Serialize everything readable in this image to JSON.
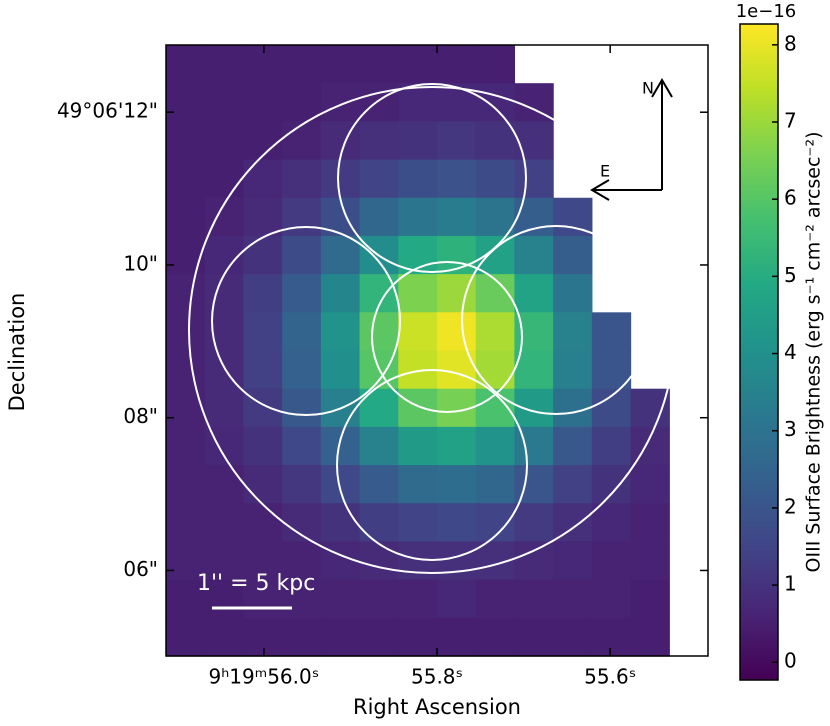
{
  "chart_data": {
    "type": "heatmap",
    "xlabel": "Right Ascension",
    "ylabel": "Declination",
    "colormap": "viridis",
    "clim": [
      -0.23,
      8.27
    ],
    "cbar_ticks": [
      0,
      1,
      2,
      3,
      4,
      5,
      6,
      7,
      8
    ],
    "cbar_offset": "1e−16",
    "cbar_label": "OIII Surface Brightness (erg s⁻¹ cm⁻² arcsec⁻²)",
    "xlim": [
      56.113,
      55.487
    ],
    "xticks": [
      {
        "value": 56.0,
        "label": "9ʰ19ᵐ56.0ˢ"
      },
      {
        "value": 55.8,
        "label": "55.8ˢ"
      },
      {
        "value": 55.6,
        "label": "55.6ˢ"
      }
    ],
    "ylim": [
      4.88,
      12.88
    ],
    "yticks": [
      {
        "value": 12,
        "label": "49°06'12\""
      },
      {
        "value": 10,
        "label": "10\""
      },
      {
        "value": 8,
        "label": "08\""
      },
      {
        "value": 6,
        "label": "06\""
      }
    ],
    "values": [
      [
        0.5,
        0.5,
        0.5,
        0.5,
        0.5,
        0.5,
        0.5,
        0.5,
        0.5,
        null,
        null,
        null,
        null,
        null
      ],
      [
        0.5,
        0.5,
        0.5,
        0.5,
        0.6,
        0.6,
        0.7,
        0.7,
        0.7,
        0.6,
        null,
        null,
        null,
        null
      ],
      [
        0.5,
        0.5,
        0.5,
        0.6,
        0.8,
        0.9,
        1.0,
        1.1,
        1.0,
        0.9,
        null,
        null,
        null,
        null
      ],
      [
        0.5,
        0.5,
        0.7,
        0.9,
        1.2,
        1.5,
        1.8,
        1.9,
        1.7,
        1.4,
        null,
        null,
        null,
        null
      ],
      [
        0.5,
        0.6,
        0.8,
        1.2,
        1.8,
        2.6,
        3.1,
        3.3,
        3.0,
        2.3,
        1.6,
        null,
        null,
        null
      ],
      [
        0.5,
        0.7,
        1.0,
        1.7,
        2.7,
        3.9,
        4.9,
        5.2,
        4.6,
        3.5,
        2.3,
        null,
        null,
        null
      ],
      [
        0.6,
        0.8,
        1.3,
        2.2,
        3.6,
        5.3,
        6.6,
        7.0,
        6.3,
        4.7,
        3.1,
        null,
        null,
        null
      ],
      [
        0.6,
        0.8,
        1.4,
        2.5,
        4.1,
        6.1,
        7.6,
        8.1,
        7.2,
        5.4,
        3.5,
        2.0,
        null,
        null
      ],
      [
        0.6,
        0.8,
        1.4,
        2.4,
        4.0,
        6.0,
        7.5,
        7.9,
        7.1,
        5.3,
        3.4,
        2.0,
        null,
        null
      ],
      [
        0.6,
        0.8,
        1.2,
        2.1,
        3.4,
        4.9,
        6.1,
        6.5,
        5.8,
        4.4,
        2.9,
        1.7,
        1.0,
        null
      ],
      [
        0.6,
        0.7,
        1.0,
        1.6,
        2.4,
        3.5,
        4.4,
        4.6,
        4.1,
        3.2,
        2.1,
        1.3,
        0.8,
        null
      ],
      [
        0.6,
        0.6,
        0.8,
        1.1,
        1.6,
        2.2,
        2.7,
        2.8,
        2.6,
        2.0,
        1.4,
        1.0,
        0.7,
        null
      ],
      [
        0.6,
        0.6,
        0.6,
        0.8,
        1.0,
        1.3,
        1.5,
        1.6,
        1.5,
        1.2,
        0.9,
        0.7,
        0.6,
        null
      ],
      [
        0.6,
        0.6,
        0.6,
        0.6,
        0.7,
        0.8,
        0.9,
        0.9,
        0.9,
        0.8,
        0.7,
        0.6,
        0.6,
        null
      ],
      [
        0.5,
        0.5,
        0.6,
        0.6,
        0.6,
        0.6,
        0.6,
        0.7,
        0.6,
        0.6,
        0.6,
        0.6,
        0.5,
        null
      ],
      [
        0.5,
        0.5,
        0.5,
        0.5,
        0.5,
        0.5,
        0.5,
        0.5,
        0.5,
        0.5,
        0.5,
        0.5,
        0.5,
        null
      ]
    ],
    "annotations": {
      "scale_bar": "1'' = 5 kpc",
      "north": "N",
      "east": "E"
    }
  }
}
